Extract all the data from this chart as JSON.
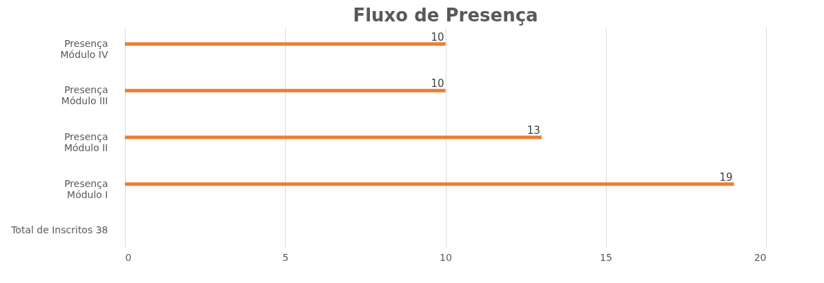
{
  "chart_data": {
    "type": "bar",
    "orientation": "horizontal",
    "title": "Fluxo de Presença",
    "categories": [
      "Presença Módulo IV",
      "Presença Módulo III",
      "Presença Módulo II",
      "Presença Módulo I",
      "Total de Inscritos 38"
    ],
    "values": [
      10,
      10,
      13,
      19,
      null
    ],
    "color": "#ed7d31",
    "xlim": [
      0,
      20
    ],
    "xticks": [
      0,
      5,
      10,
      15,
      20
    ],
    "grid": "x",
    "data_labels": true
  }
}
